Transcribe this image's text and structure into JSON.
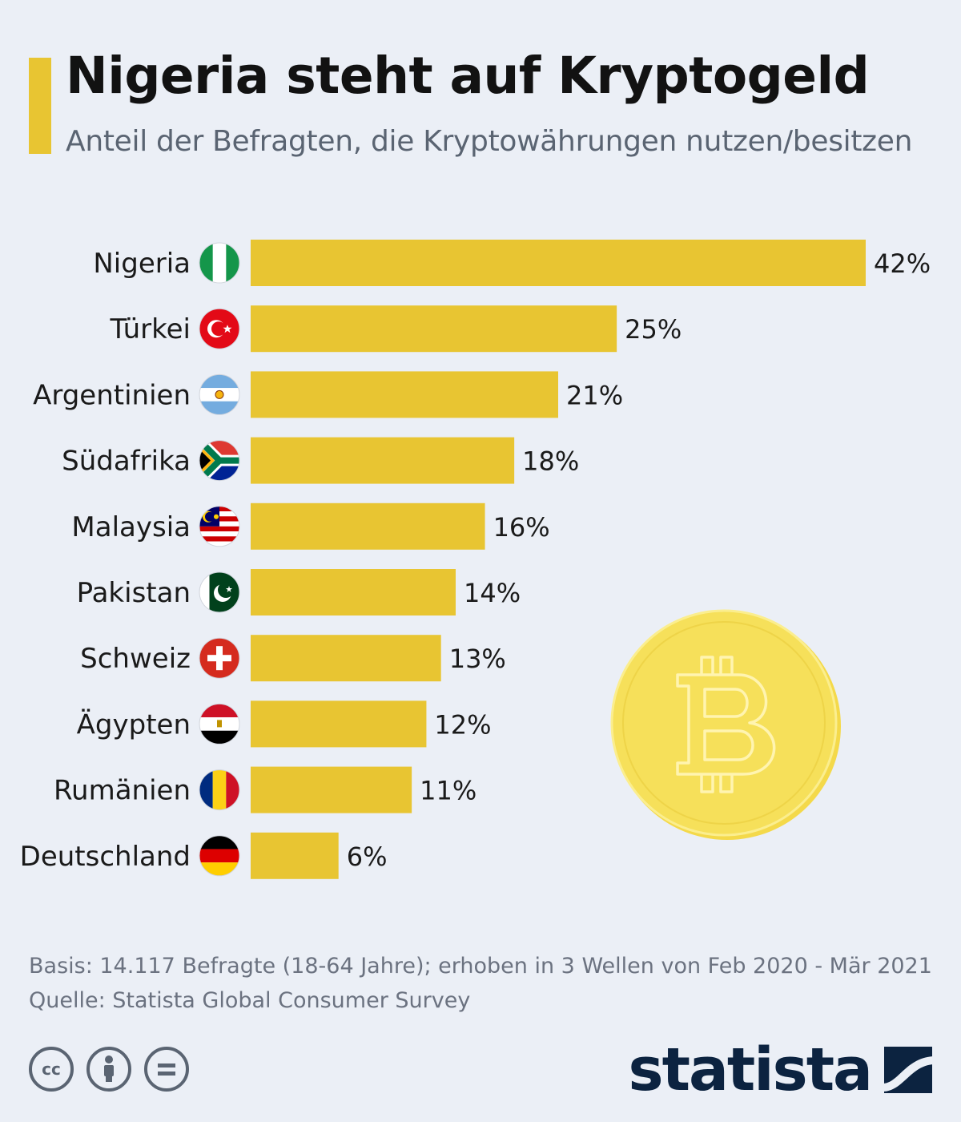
{
  "header": {
    "title": "Nigeria steht auf Kryptogeld",
    "subtitle": "Anteil der Befragten, die Kryptowährungen nutzen/besitzen"
  },
  "chart_data": {
    "type": "bar",
    "orientation": "horizontal",
    "categories": [
      "Nigeria",
      "Türkei",
      "Argentinien",
      "Südafrika",
      "Malaysia",
      "Pakistan",
      "Schweiz",
      "Ägypten",
      "Rumänien",
      "Deutschland"
    ],
    "values": [
      42,
      25,
      21,
      18,
      16,
      14,
      13,
      12,
      11,
      6
    ],
    "value_labels": [
      "42%",
      "25%",
      "21%",
      "18%",
      "16%",
      "14%",
      "13%",
      "12%",
      "11%",
      "6%"
    ],
    "unit": "%",
    "bar_color": "#e8c532",
    "flags": [
      "nigeria-flag-icon",
      "turkey-flag-icon",
      "argentina-flag-icon",
      "south-africa-flag-icon",
      "malaysia-flag-icon",
      "pakistan-flag-icon",
      "switzerland-flag-icon",
      "egypt-flag-icon",
      "romania-flag-icon",
      "germany-flag-icon"
    ],
    "xlim": [
      0,
      42
    ],
    "grid": false,
    "legend": "none"
  },
  "decoration": {
    "icon": "bitcoin-coin-icon"
  },
  "footer": {
    "basis": "Basis: 14.117 Befragte (18-64 Jahre); erhoben in 3 Wellen von Feb 2020 - Mär 2021",
    "source": "Quelle: Statista Global Consumer Survey",
    "license_icons": [
      "cc-icon",
      "by-attribution-icon",
      "no-derivatives-icon"
    ],
    "brand": "statista"
  },
  "colors": {
    "background": "#ebeff6",
    "accent": "#e8c532",
    "brand": "#0c2340",
    "muted_text": "#5a6472"
  }
}
